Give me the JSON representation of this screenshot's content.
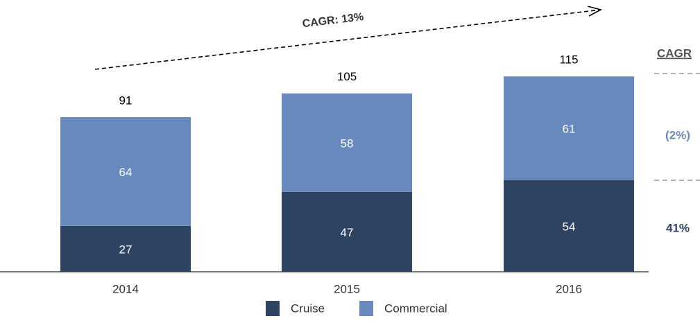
{
  "chart_data": {
    "type": "stacked_bar",
    "categories": [
      "2014",
      "2015",
      "2016"
    ],
    "series": [
      {
        "name": "Cruise",
        "color": "#2e4462",
        "values": [
          27,
          47,
          54
        ],
        "cagr_label": "41%"
      },
      {
        "name": "Commercial",
        "color": "#6789be",
        "values": [
          64,
          58,
          61
        ],
        "cagr_label": "(2%)"
      }
    ],
    "totals": [
      91,
      105,
      115
    ],
    "trend_annotation": "CAGR: 13%",
    "cagr_title": "CAGR"
  }
}
